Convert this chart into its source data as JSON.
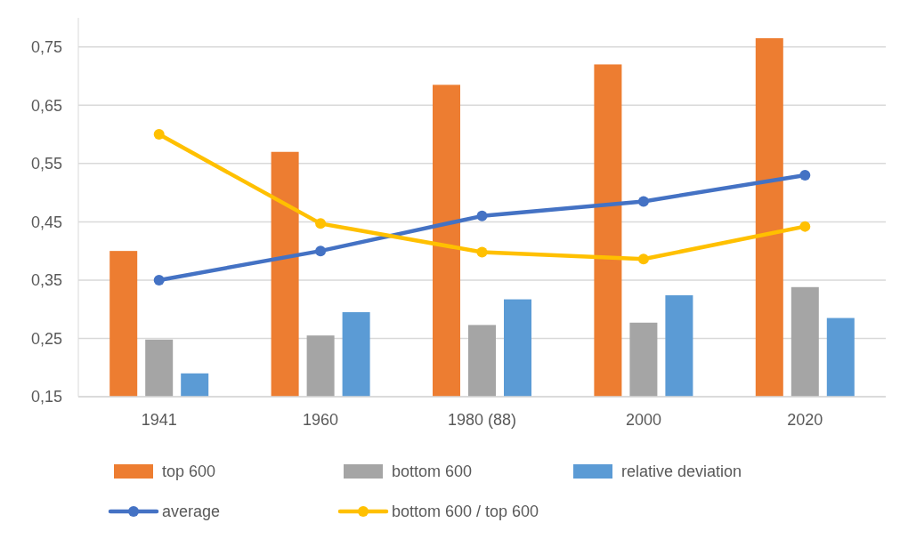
{
  "chart_data": {
    "type": "bar",
    "categories": [
      "1941",
      "1960",
      "1980 (88)",
      "2000",
      "2020"
    ],
    "series": [
      {
        "name": "top 600",
        "color": "#ed7d31",
        "values": [
          0.4,
          0.57,
          0.685,
          0.72,
          0.765
        ]
      },
      {
        "name": "bottom 600",
        "color": "#a5a5a5",
        "values": [
          0.248,
          0.255,
          0.273,
          0.277,
          0.338
        ]
      },
      {
        "name": "relative deviation",
        "color": "#5b9bd5",
        "values": [
          0.19,
          0.295,
          0.317,
          0.324,
          0.285
        ]
      },
      {
        "name": "average",
        "type": "line",
        "color": "#4472c4",
        "values": [
          0.35,
          0.4,
          0.46,
          0.485,
          0.53
        ]
      },
      {
        "name": "bottom 600 / top 600",
        "type": "line",
        "color": "#ffc000",
        "values": [
          0.6,
          0.447,
          0.398,
          0.386,
          0.442
        ]
      }
    ],
    "ylim": [
      0.15,
      0.8
    ],
    "yticks": [
      {
        "value": 0.15,
        "label": "0,15"
      },
      {
        "value": 0.25,
        "label": "0,25"
      },
      {
        "value": 0.35,
        "label": "0,35"
      },
      {
        "value": 0.45,
        "label": "0,45"
      },
      {
        "value": 0.55,
        "label": "0,55"
      },
      {
        "value": 0.65,
        "label": "0,65"
      },
      {
        "value": 0.75,
        "label": "0,75"
      }
    ],
    "grid": "y",
    "legend": "bottom",
    "marker": "circle"
  }
}
